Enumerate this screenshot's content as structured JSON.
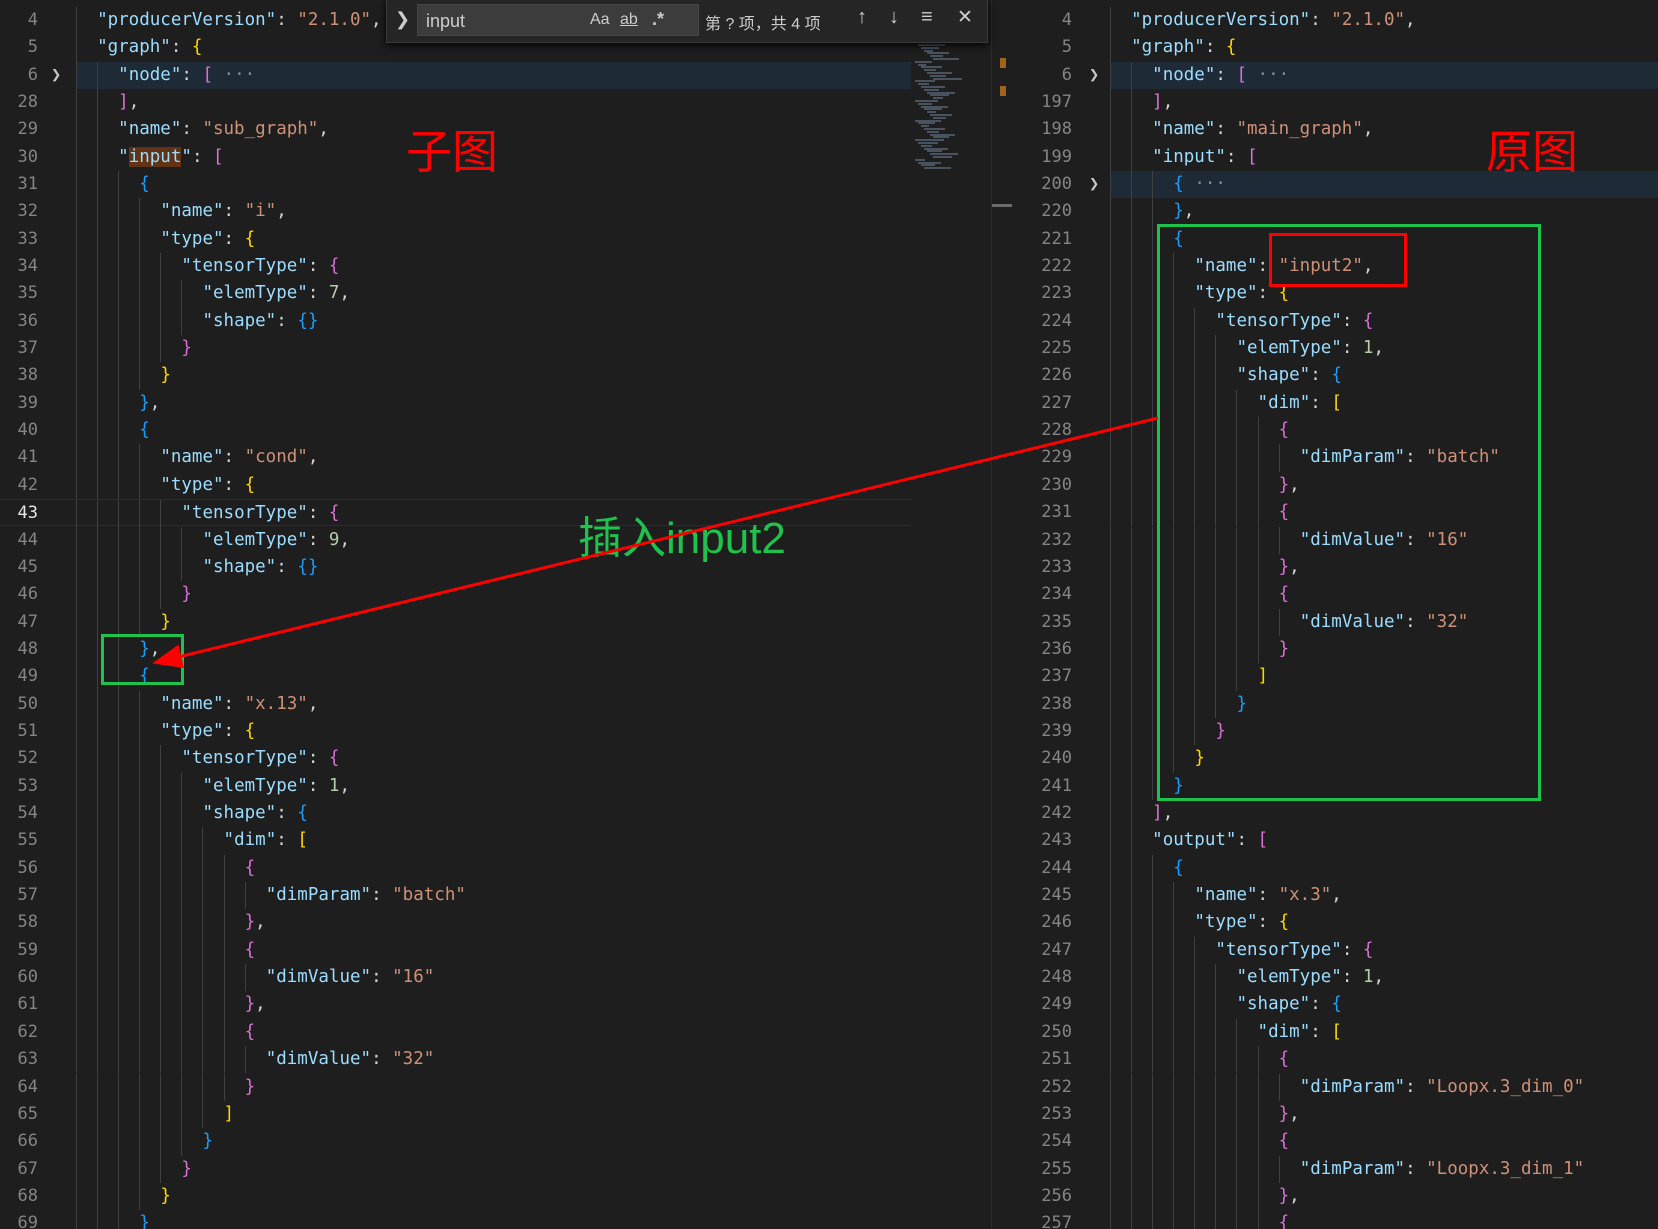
{
  "find_widget": {
    "query": "input",
    "match_case_label": "Aa",
    "whole_word_label": "ab",
    "regex_label": ".*",
    "result_text": "第 ? 项，共 4 项",
    "icons": [
      "chevron-right-icon",
      "arrow-up-icon",
      "arrow-down-icon",
      "find-in-selection-icon",
      "close-icon"
    ]
  },
  "annotations": {
    "left_label": "子图",
    "right_label": "原图",
    "insert_label": "插入input2",
    "red": "#ff0000",
    "green": "#1fc24c"
  },
  "colors": {
    "key": "#9cdcfe",
    "string": "#ce9178",
    "number": "#b5cea8",
    "bracket_1": "#ffd700",
    "bracket_2": "#da70d6",
    "bracket_3": "#179fff",
    "editor_bg": "#1e1e1e"
  },
  "left_editor": {
    "start_depth": 1,
    "active_line": "43",
    "lines": [
      {
        "n": "3",
        "t": ""
      },
      {
        "n": "4",
        "t": "  \"producerVersion\": \"2.1.0\","
      },
      {
        "n": "5",
        "t": "  \"graph\": {"
      },
      {
        "n": "6",
        "t": "    \"node\": [ ···",
        "folded": true
      },
      {
        "n": "28",
        "t": "    ],"
      },
      {
        "n": "29",
        "t": "    \"name\": \"sub_graph\","
      },
      {
        "n": "30",
        "t": "    \"input\": [",
        "match": "input"
      },
      {
        "n": "31",
        "t": "      {"
      },
      {
        "n": "32",
        "t": "        \"name\": \"i\","
      },
      {
        "n": "33",
        "t": "        \"type\": {"
      },
      {
        "n": "34",
        "t": "          \"tensorType\": {"
      },
      {
        "n": "35",
        "t": "            \"elemType\": 7,"
      },
      {
        "n": "36",
        "t": "            \"shape\": {}"
      },
      {
        "n": "37",
        "t": "          }"
      },
      {
        "n": "38",
        "t": "        }"
      },
      {
        "n": "39",
        "t": "      },"
      },
      {
        "n": "40",
        "t": "      {"
      },
      {
        "n": "41",
        "t": "        \"name\": \"cond\","
      },
      {
        "n": "42",
        "t": "        \"type\": {"
      },
      {
        "n": "43",
        "t": "          \"tensorType\": {"
      },
      {
        "n": "44",
        "t": "            \"elemType\": 9,"
      },
      {
        "n": "45",
        "t": "            \"shape\": {}"
      },
      {
        "n": "46",
        "t": "          }"
      },
      {
        "n": "47",
        "t": "        }"
      },
      {
        "n": "48",
        "t": "      },"
      },
      {
        "n": "49",
        "t": "      {"
      },
      {
        "n": "50",
        "t": "        \"name\": \"x.13\","
      },
      {
        "n": "51",
        "t": "        \"type\": {"
      },
      {
        "n": "52",
        "t": "          \"tensorType\": {"
      },
      {
        "n": "53",
        "t": "            \"elemType\": 1,"
      },
      {
        "n": "54",
        "t": "            \"shape\": {"
      },
      {
        "n": "55",
        "t": "              \"dim\": ["
      },
      {
        "n": "56",
        "t": "                {"
      },
      {
        "n": "57",
        "t": "                  \"dimParam\": \"batch\""
      },
      {
        "n": "58",
        "t": "                },"
      },
      {
        "n": "59",
        "t": "                {"
      },
      {
        "n": "60",
        "t": "                  \"dimValue\": \"16\""
      },
      {
        "n": "61",
        "t": "                },"
      },
      {
        "n": "62",
        "t": "                {"
      },
      {
        "n": "63",
        "t": "                  \"dimValue\": \"32\""
      },
      {
        "n": "64",
        "t": "                }"
      },
      {
        "n": "65",
        "t": "              ]"
      },
      {
        "n": "66",
        "t": "            }"
      },
      {
        "n": "67",
        "t": "          }"
      },
      {
        "n": "68",
        "t": "        }"
      },
      {
        "n": "69",
        "t": "      }"
      }
    ]
  },
  "right_editor": {
    "start_depth": 1,
    "lines": [
      {
        "n": "3",
        "t": ""
      },
      {
        "n": "4",
        "t": "  \"producerVersion\": \"2.1.0\","
      },
      {
        "n": "5",
        "t": "  \"graph\": {"
      },
      {
        "n": "6",
        "t": "    \"node\": [ ···",
        "folded": true
      },
      {
        "n": "197",
        "t": "    ],"
      },
      {
        "n": "198",
        "t": "    \"name\": \"main_graph\","
      },
      {
        "n": "199",
        "t": "    \"input\": ["
      },
      {
        "n": "200",
        "t": "      { ···",
        "folded": true
      },
      {
        "n": "220",
        "t": "      },"
      },
      {
        "n": "221",
        "t": "      {"
      },
      {
        "n": "222",
        "t": "        \"name\": \"input2\","
      },
      {
        "n": "223",
        "t": "        \"type\": {"
      },
      {
        "n": "224",
        "t": "          \"tensorType\": {"
      },
      {
        "n": "225",
        "t": "            \"elemType\": 1,"
      },
      {
        "n": "226",
        "t": "            \"shape\": {"
      },
      {
        "n": "227",
        "t": "              \"dim\": ["
      },
      {
        "n": "228",
        "t": "                {"
      },
      {
        "n": "229",
        "t": "                  \"dimParam\": \"batch\""
      },
      {
        "n": "230",
        "t": "                },"
      },
      {
        "n": "231",
        "t": "                {"
      },
      {
        "n": "232",
        "t": "                  \"dimValue\": \"16\""
      },
      {
        "n": "233",
        "t": "                },"
      },
      {
        "n": "234",
        "t": "                {"
      },
      {
        "n": "235",
        "t": "                  \"dimValue\": \"32\""
      },
      {
        "n": "236",
        "t": "                }"
      },
      {
        "n": "237",
        "t": "              ]"
      },
      {
        "n": "238",
        "t": "            }"
      },
      {
        "n": "239",
        "t": "          }"
      },
      {
        "n": "240",
        "t": "        }"
      },
      {
        "n": "241",
        "t": "      }"
      },
      {
        "n": "242",
        "t": "    ],"
      },
      {
        "n": "243",
        "t": "    \"output\": ["
      },
      {
        "n": "244",
        "t": "      {"
      },
      {
        "n": "245",
        "t": "        \"name\": \"x.3\","
      },
      {
        "n": "246",
        "t": "        \"type\": {"
      },
      {
        "n": "247",
        "t": "          \"tensorType\": {"
      },
      {
        "n": "248",
        "t": "            \"elemType\": 1,"
      },
      {
        "n": "249",
        "t": "            \"shape\": {"
      },
      {
        "n": "250",
        "t": "              \"dim\": ["
      },
      {
        "n": "251",
        "t": "                {"
      },
      {
        "n": "252",
        "t": "                  \"dimParam\": \"Loopx.3_dim_0\""
      },
      {
        "n": "253",
        "t": "                },"
      },
      {
        "n": "254",
        "t": "                {"
      },
      {
        "n": "255",
        "t": "                  \"dimParam\": \"Loopx.3_dim_1\""
      },
      {
        "n": "256",
        "t": "                },"
      },
      {
        "n": "257",
        "t": "                {"
      }
    ]
  }
}
